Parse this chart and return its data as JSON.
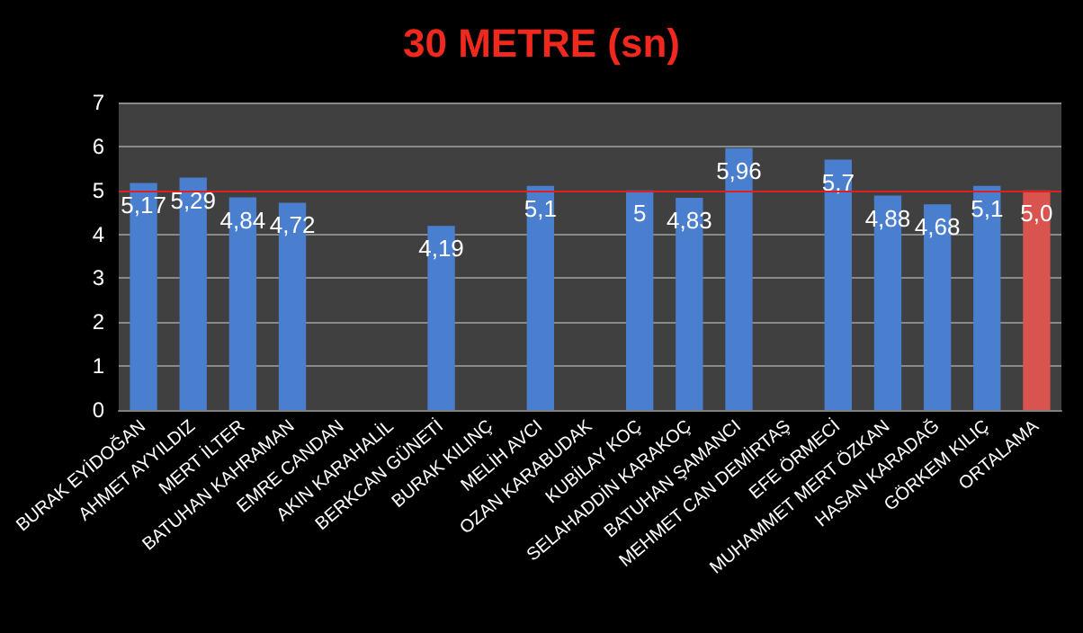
{
  "chart_data": {
    "type": "bar",
    "title": "30 METRE (sn)",
    "categories": [
      "BURAK EYİDOĞAN",
      "AHMET AYYILDIZ",
      "MERT İLTER",
      "BATUHAN KAHRAMAN",
      "EMRE CANDAN",
      "AKIN KARAHALİL",
      "BERKCAN GÜNETİ",
      "BURAK KILINÇ",
      "MELİH AVCI",
      "OZAN KARABUDAK",
      "KUBİLAY KOÇ",
      "SELAHADDİN KARAKOÇ",
      "BATUHAN ŞAMANCI",
      "MEHMET CAN DEMİRTAŞ",
      "EFE ÖRMECİ",
      "MUHAMMET MERT ÖZKAN",
      "HASAN KARADAĞ",
      "GÖRKEM KILIÇ",
      "ORTALAMA"
    ],
    "values": [
      5.17,
      5.29,
      4.84,
      4.72,
      null,
      null,
      4.19,
      null,
      5.1,
      null,
      5,
      4.83,
      5.96,
      null,
      5.7,
      4.88,
      4.68,
      5.1,
      5.0
    ],
    "value_labels": [
      "5,17",
      "5,29",
      "4,84",
      "4,72",
      null,
      null,
      "4,19",
      null,
      "5,1",
      null,
      "5",
      "4,83",
      "5,96",
      null,
      "5,7",
      "4,88",
      "4,68",
      "5,1",
      "5,0"
    ],
    "colors": [
      "#4a7fd0",
      "#4a7fd0",
      "#4a7fd0",
      "#4a7fd0",
      "#4a7fd0",
      "#4a7fd0",
      "#4a7fd0",
      "#4a7fd0",
      "#4a7fd0",
      "#4a7fd0",
      "#4a7fd0",
      "#4a7fd0",
      "#4a7fd0",
      "#4a7fd0",
      "#4a7fd0",
      "#4a7fd0",
      "#4a7fd0",
      "#4a7fd0",
      "#d9534f"
    ],
    "ylim": [
      0,
      7
    ],
    "yticks": [
      0,
      1,
      2,
      3,
      4,
      5,
      6,
      7
    ],
    "grid": "y",
    "ref_lines": [
      {
        "axis": "y",
        "value": 5,
        "color": "#e02020"
      }
    ]
  }
}
